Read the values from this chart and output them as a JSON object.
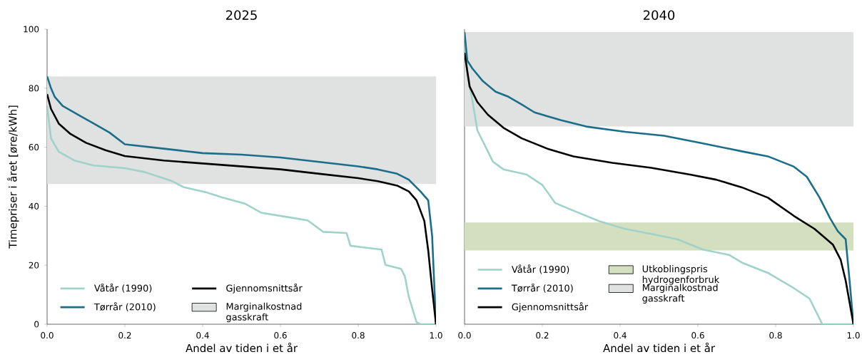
{
  "chart_data": [
    {
      "type": "line",
      "title": "2025",
      "xlabel": "Andel av tiden i et år",
      "ylabel": "Timepriser i året [øre/kWh]",
      "xlim": [
        0,
        1
      ],
      "ylim": [
        0,
        100
      ],
      "xticks": [
        {
          "value": 0,
          "label": "0.0"
        },
        {
          "value": 0.2,
          "label": "0.2"
        },
        {
          "value": 0.4,
          "label": "0.4"
        },
        {
          "value": 0.6,
          "label": "0.6"
        },
        {
          "value": 0.8,
          "label": "0.8"
        },
        {
          "value": 1,
          "label": "1.0"
        }
      ],
      "yticks": [
        0,
        20,
        40,
        60,
        80,
        100
      ],
      "legend": "bottom left",
      "grid": false,
      "series": [
        {
          "name": "Våtår (1990)",
          "color": "#9fd3c9",
          "x": [
            0,
            0.01,
            0.03,
            0.07,
            0.12,
            0.2,
            0.25,
            0.32,
            0.35,
            0.41,
            0.45,
            0.51,
            0.55,
            0.61,
            0.67,
            0.71,
            0.77,
            0.78,
            0.86,
            0.87,
            0.91,
            0.92,
            0.93,
            0.95,
            0.96,
            1.0
          ],
          "values": [
            74,
            63,
            58.5,
            55.5,
            53.8,
            52.9,
            51.6,
            48.6,
            46.5,
            44.7,
            43,
            40.8,
            37.8,
            36.5,
            35.2,
            31.3,
            30.9,
            26.6,
            25.3,
            20.1,
            18.8,
            16.2,
            9.3,
            0.7,
            0,
            0
          ]
        },
        {
          "name": "Tørrår (2010)",
          "color": "#1a6e8a",
          "x": [
            0,
            0.01,
            0.02,
            0.04,
            0.08,
            0.12,
            0.16,
            0.2,
            0.3,
            0.4,
            0.5,
            0.6,
            0.7,
            0.8,
            0.85,
            0.9,
            0.93,
            0.96,
            0.98,
            0.99,
            1.0
          ],
          "values": [
            84,
            80,
            77,
            74,
            71,
            68,
            65,
            61,
            59.5,
            58,
            57.5,
            56.5,
            55,
            53.5,
            52.5,
            51,
            49,
            45,
            42,
            30,
            0
          ]
        },
        {
          "name": "Gjennomsnittsår",
          "color": "#000000",
          "x": [
            0,
            0.01,
            0.03,
            0.06,
            0.1,
            0.15,
            0.2,
            0.3,
            0.4,
            0.5,
            0.6,
            0.7,
            0.8,
            0.85,
            0.9,
            0.93,
            0.95,
            0.97,
            0.98,
            0.99,
            1.0
          ],
          "values": [
            78,
            73,
            68,
            64.5,
            61.5,
            59,
            57,
            55.5,
            54.5,
            53.5,
            52.5,
            51,
            49.5,
            48.5,
            47,
            45,
            42,
            35,
            25,
            12,
            0
          ]
        }
      ],
      "bands": [
        {
          "axis": "y",
          "from": 47.5,
          "to": 84,
          "label": "Marginalkostnad gasskraft",
          "color": "#e0e1e1"
        }
      ]
    },
    {
      "type": "line",
      "title": "2040",
      "xlabel": "Andel av tiden i et år",
      "xlim": [
        0,
        1
      ],
      "ylim": [
        0,
        100
      ],
      "xticks": [
        {
          "value": 0,
          "label": "0.0"
        },
        {
          "value": 0.2,
          "label": "0.2"
        },
        {
          "value": 0.4,
          "label": "0.4"
        },
        {
          "value": 0.6,
          "label": "0.6"
        },
        {
          "value": 0.8,
          "label": "0.8"
        },
        {
          "value": 1,
          "label": "1.0"
        }
      ],
      "yticks": [
        0,
        20,
        40,
        60,
        80,
        100
      ],
      "tick_labels": "x",
      "legend": "bottom left",
      "grid": false,
      "series": [
        {
          "name": "Våtår (1990)",
          "color": "#9fd3c9",
          "x": [
            0,
            0.007,
            0.02,
            0.033,
            0.053,
            0.073,
            0.1,
            0.16,
            0.2,
            0.233,
            0.28,
            0.347,
            0.413,
            0.48,
            0.547,
            0.613,
            0.68,
            0.713,
            0.78,
            0.847,
            0.887,
            0.92,
            1.0
          ],
          "values": [
            97,
            85,
            76,
            65.7,
            60.4,
            55.1,
            52.5,
            50.7,
            47.2,
            41.1,
            38.5,
            34.9,
            32.3,
            30.6,
            28.8,
            25.3,
            23.5,
            20.9,
            17.4,
            12.2,
            8.7,
            0,
            0
          ]
        },
        {
          "name": "Tørrår (2010)",
          "color": "#1a6e8a",
          "x": [
            0,
            0.007,
            0.02,
            0.047,
            0.08,
            0.113,
            0.147,
            0.18,
            0.247,
            0.313,
            0.413,
            0.513,
            0.613,
            0.713,
            0.78,
            0.847,
            0.88,
            0.913,
            0.94,
            0.96,
            0.98,
            0.99,
            1.0
          ],
          "values": [
            99,
            89.4,
            86.7,
            82.4,
            78.8,
            77.1,
            74.5,
            71.8,
            69.2,
            67,
            65.2,
            63.9,
            61.3,
            58.6,
            56.9,
            53.4,
            50,
            42.9,
            35.9,
            31.5,
            28.8,
            14.8,
            0
          ]
        },
        {
          "name": "Gjennomsnittsår",
          "color": "#000000",
          "x": [
            0,
            0.013,
            0.033,
            0.06,
            0.1,
            0.147,
            0.213,
            0.28,
            0.38,
            0.48,
            0.58,
            0.647,
            0.713,
            0.78,
            0.847,
            0.9,
            0.947,
            0.967,
            0.98,
            1.0
          ],
          "values": [
            92,
            80.6,
            75.3,
            71,
            66.6,
            63,
            59.5,
            56.9,
            54.7,
            53,
            50.7,
            49,
            46.4,
            42.9,
            36.7,
            32.3,
            27,
            21.9,
            14.8,
            0
          ]
        }
      ],
      "bands": [
        {
          "axis": "y",
          "from": 25,
          "to": 34.5,
          "label": "Utkoblingspris hydrogenforbruk",
          "color": "#d4dfc0"
        },
        {
          "axis": "y",
          "from": 67,
          "to": 99,
          "label": "Marginalkostnad gasskraft",
          "color": "#e0e1e1"
        }
      ]
    }
  ]
}
